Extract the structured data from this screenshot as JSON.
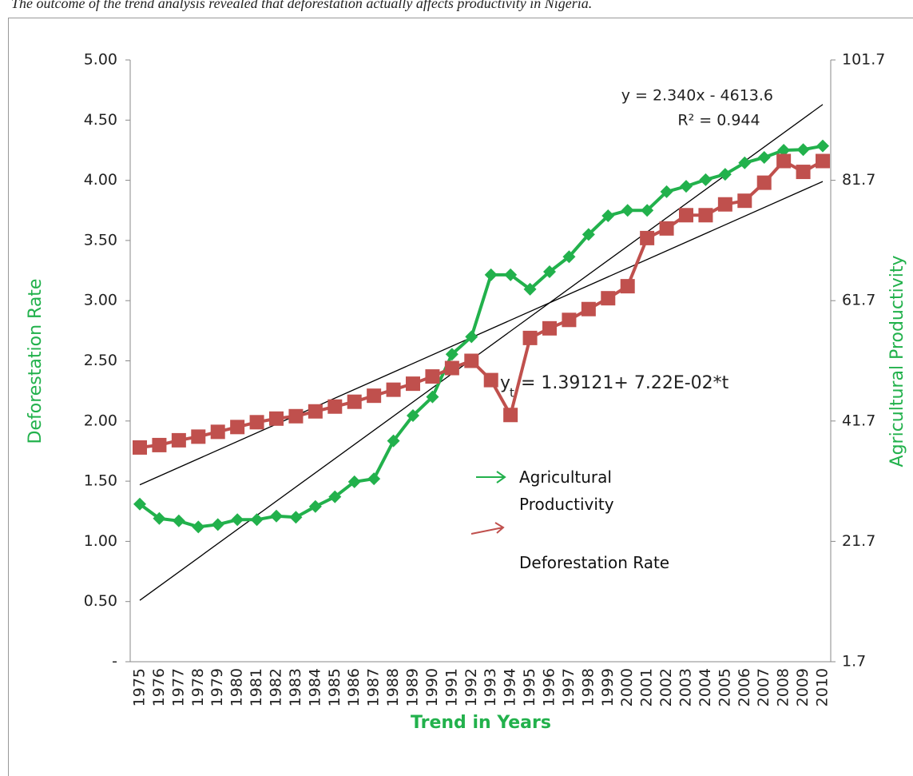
{
  "header": {
    "text": "The outcome of the trend analysis revealed that deforestation actually affects productivity in Nigeria."
  },
  "chart_data": {
    "type": "line",
    "x_label": "Trend in Years",
    "y_label": "Deforestation Rate",
    "y2_label": "Agricultural Productivity",
    "categories": [
      "1975",
      "1976",
      "1977",
      "1978",
      "1979",
      "1980",
      "1981",
      "1982",
      "1983",
      "1984",
      "1985",
      "1986",
      "1987",
      "1988",
      "1989",
      "1990",
      "1991",
      "1992",
      "1993",
      "1994",
      "1995",
      "1996",
      "1997",
      "1998",
      "1999",
      "2000",
      "2001",
      "2002",
      "2003",
      "2004",
      "2005",
      "2006",
      "2007",
      "2008",
      "2009",
      "2010"
    ],
    "series": [
      {
        "name": "Agricultural Productivity",
        "color": "#22b14c",
        "marker": "diamond",
        "axis": "y2",
        "values": [
          27.9,
          25.5,
          25.1,
          24.1,
          24.5,
          25.3,
          25.3,
          25.9,
          25.7,
          27.5,
          29.1,
          31.6,
          32.1,
          38.4,
          42.6,
          45.7,
          52.8,
          55.7,
          66.0,
          66.0,
          63.6,
          66.5,
          69.0,
          72.7,
          75.8,
          76.7,
          76.7,
          79.8,
          80.7,
          81.8,
          82.7,
          84.6,
          85.5,
          86.7,
          86.8,
          87.4
        ]
      },
      {
        "name": "Deforestation Rate",
        "color": "#c0504d",
        "marker": "square",
        "values": [
          1.78,
          1.8,
          1.84,
          1.87,
          1.91,
          1.95,
          1.99,
          2.02,
          2.04,
          2.08,
          2.12,
          2.16,
          2.21,
          2.26,
          2.31,
          2.37,
          2.44,
          2.5,
          2.34,
          2.05,
          2.69,
          2.77,
          2.84,
          2.93,
          3.02,
          3.12,
          3.52,
          3.6,
          3.71,
          3.71,
          3.8,
          3.83,
          3.98,
          4.16,
          4.07,
          4.16
        ]
      }
    ],
    "trendlines": [
      {
        "from": 1.47,
        "to": 3.99
      },
      {
        "from": 0.51,
        "to": 4.63
      }
    ],
    "annotations": [
      {
        "text": "y = 2.340x - 4613.6"
      },
      {
        "text": "R² = 0.944"
      },
      {
        "text": "y",
        "subscript": "t",
        "rest": "= 1.39121+ 7.22E-02*t"
      }
    ],
    "ylim": [
      0,
      5
    ],
    "yticks": [
      {
        "value": 0,
        "label": "-"
      },
      {
        "value": 0.5,
        "label": "0.50"
      },
      {
        "value": 1,
        "label": "1.00"
      },
      {
        "value": 1.5,
        "label": "1.50"
      },
      {
        "value": 2,
        "label": "2.00"
      },
      {
        "value": 2.5,
        "label": "2.50"
      },
      {
        "value": 3,
        "label": "3.00"
      },
      {
        "value": 3.5,
        "label": "3.50"
      },
      {
        "value": 4,
        "label": "4.00"
      },
      {
        "value": 4.5,
        "label": "4.50"
      },
      {
        "value": 5,
        "label": "5.00"
      }
    ],
    "y2lim": [
      1.7,
      101.7
    ],
    "y2ticks": [
      1.7,
      21.7,
      41.7,
      61.7,
      81.7,
      101.7
    ]
  }
}
